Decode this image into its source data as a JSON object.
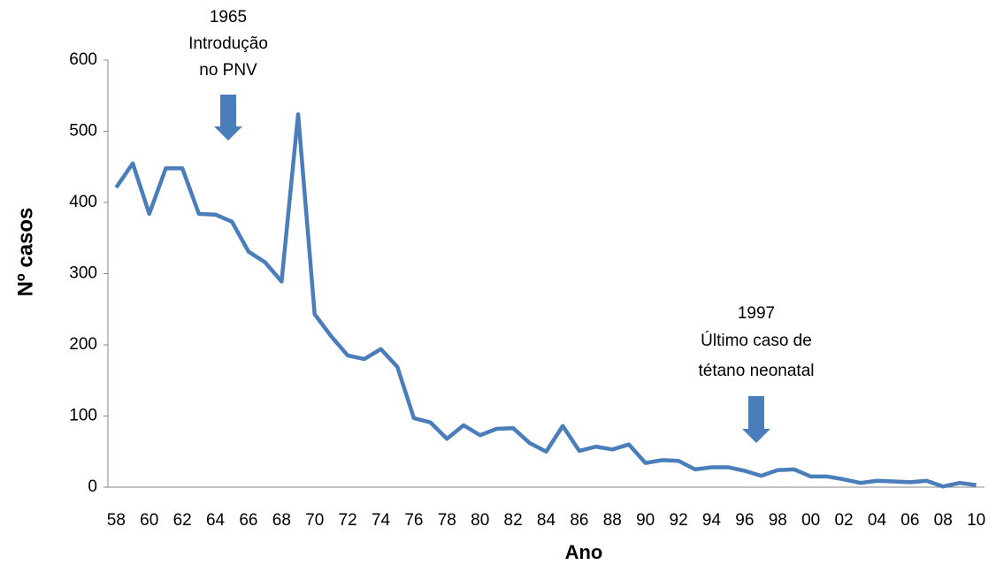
{
  "chart_data": {
    "type": "line",
    "xlabel": "Ano",
    "ylabel": "Nº casos",
    "annotations": [
      {
        "lines": [
          "1965",
          "Introdução",
          "no PNV"
        ]
      },
      {
        "lines": [
          "1997",
          "Último caso de",
          "tétano neonatal"
        ]
      }
    ],
    "categories": [
      "58",
      null,
      "60",
      null,
      "62",
      null,
      "64",
      null,
      "66",
      null,
      "68",
      null,
      "70",
      null,
      "72",
      null,
      "74",
      null,
      "76",
      null,
      "78",
      null,
      "80",
      null,
      "82",
      null,
      "84",
      null,
      "86",
      null,
      "88",
      null,
      "90",
      null,
      "92",
      null,
      "94",
      null,
      "96",
      null,
      "98",
      null,
      "00",
      null,
      "02",
      null,
      "04",
      null,
      "06",
      null,
      "08",
      null,
      "10"
    ],
    "series": [
      {
        "color": "#4a7ebb",
        "values": [
          421,
          455,
          384,
          448,
          448,
          384,
          383,
          373,
          331,
          316,
          289,
          524,
          243,
          212,
          185,
          180,
          194,
          169,
          97,
          91,
          68,
          87,
          73,
          82,
          83,
          62,
          50,
          86,
          51,
          57,
          53,
          60,
          34,
          38,
          37,
          25,
          28,
          28,
          23,
          16,
          24,
          25,
          15,
          15,
          11,
          6,
          9,
          8,
          7,
          9,
          1,
          6,
          3
        ]
      }
    ],
    "ylim": [
      0,
      600
    ],
    "yticks": [
      0,
      100,
      200,
      300,
      400,
      500,
      600
    ],
    "grid": false
  }
}
